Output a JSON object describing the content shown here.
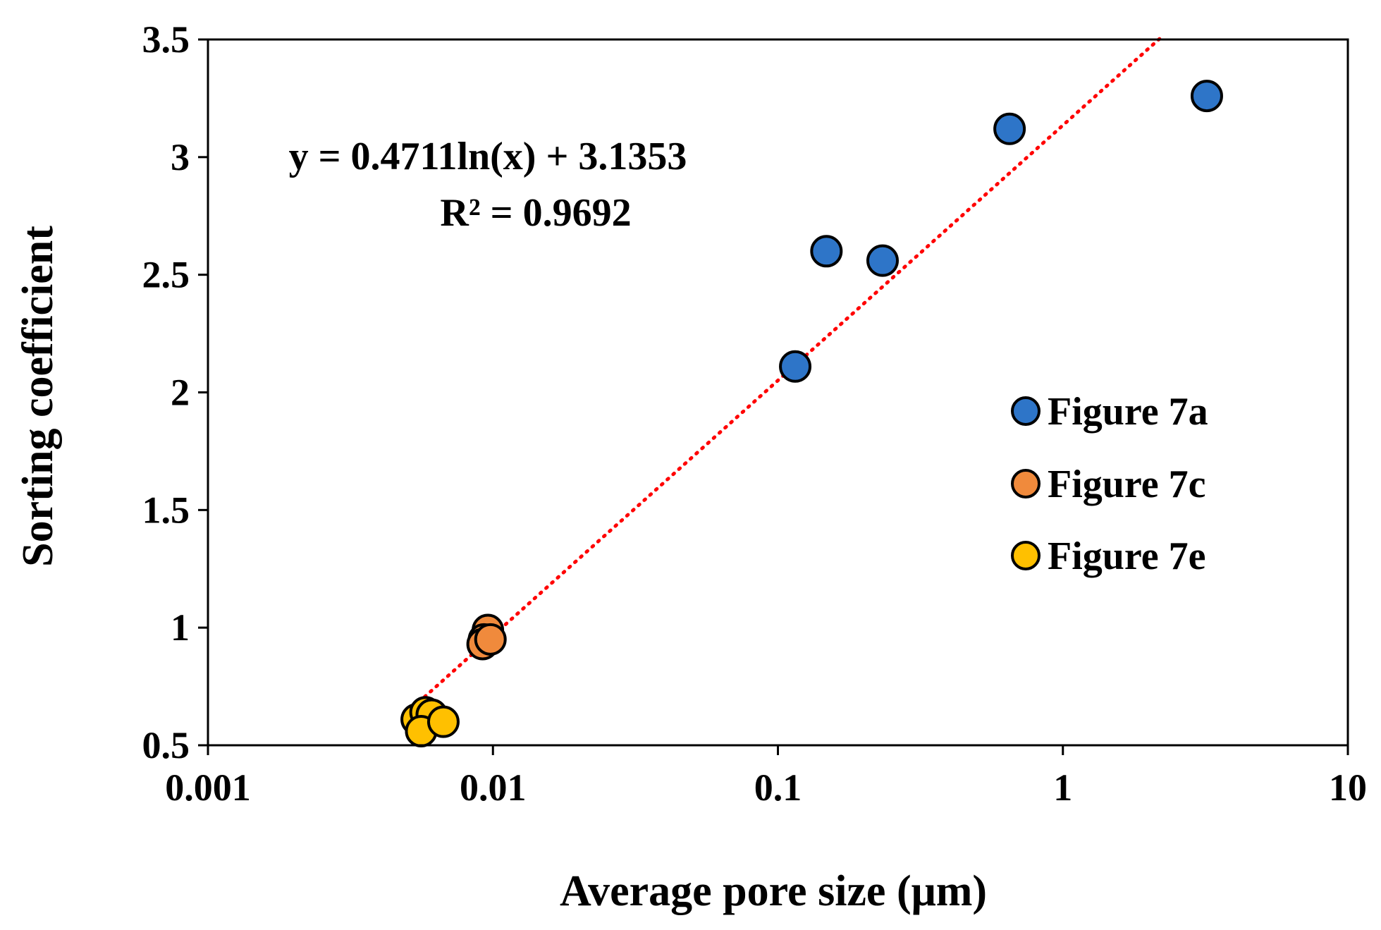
{
  "chart_data": {
    "type": "scatter",
    "title": "",
    "xlabel": "Average pore size (μm)",
    "ylabel": "Sorting coefficient",
    "xscale": "log",
    "xlim": [
      0.001,
      10
    ],
    "ylim": [
      0.5,
      3.5
    ],
    "x_ticks": [
      "0.001",
      "0.01",
      "0.1",
      "1",
      "10"
    ],
    "y_ticks": [
      "0.5",
      "1",
      "1.5",
      "2",
      "2.5",
      "3",
      "3.5"
    ],
    "grid": false,
    "legend_position": "right-middle",
    "series": [
      {
        "name": "Figure 7a",
        "color": "#2E75C8",
        "points": [
          {
            "x": 0.115,
            "y": 2.11
          },
          {
            "x": 0.148,
            "y": 2.6
          },
          {
            "x": 0.233,
            "y": 2.56
          },
          {
            "x": 0.65,
            "y": 3.12
          },
          {
            "x": 3.2,
            "y": 3.26
          }
        ]
      },
      {
        "name": "Figure 7c",
        "color": "#F08A3C",
        "points": [
          {
            "x": 0.0096,
            "y": 0.99
          },
          {
            "x": 0.0093,
            "y": 0.95
          },
          {
            "x": 0.0092,
            "y": 0.93
          },
          {
            "x": 0.0098,
            "y": 0.95
          }
        ]
      },
      {
        "name": "Figure 7e",
        "color": "#FFC000",
        "points": [
          {
            "x": 0.0054,
            "y": 0.61
          },
          {
            "x": 0.0058,
            "y": 0.64
          },
          {
            "x": 0.0061,
            "y": 0.63
          },
          {
            "x": 0.0056,
            "y": 0.56
          },
          {
            "x": 0.0067,
            "y": 0.6
          }
        ]
      }
    ],
    "trendline": {
      "type": "logarithmic",
      "slope": 0.4711,
      "intercept": 3.1353,
      "color": "#FF0000",
      "style": "dotted",
      "x_range": [
        0.0055,
        2.2
      ],
      "equation_text": "y = 0.4711ln(x) + 3.1353",
      "r2_text": "R² = 0.9692"
    }
  }
}
